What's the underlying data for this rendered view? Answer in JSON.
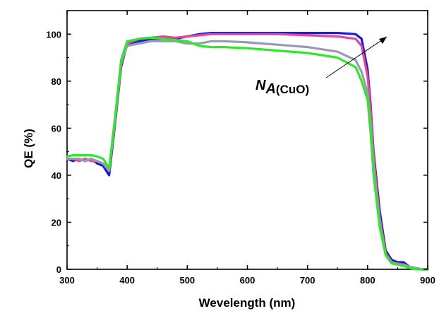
{
  "chart_data": {
    "type": "line",
    "xlabel": "Wevelength (nm)",
    "ylabel": "QE (%)",
    "xlim": [
      300,
      900
    ],
    "ylim": [
      0,
      110
    ],
    "xticks": [
      300,
      400,
      500,
      600,
      700,
      800,
      900
    ],
    "yticks": [
      0,
      20,
      40,
      60,
      80,
      100
    ],
    "xtick_labels": [
      "300",
      "400",
      "500",
      "600",
      "700",
      "800",
      "900"
    ],
    "ytick_labels": [
      "0",
      "20",
      "40",
      "60",
      "80",
      "100"
    ],
    "grid": false,
    "legend": "none",
    "annotation": {
      "var": "N",
      "sub_italic": "A",
      "sub_rest": "(CuO)",
      "arrow": "points up-right, in direction of increasing N_A"
    },
    "series": [
      {
        "color": "#1a1adb",
        "x": [
          300,
          310,
          320,
          330,
          340,
          350,
          360,
          370,
          380,
          390,
          400,
          420,
          440,
          460,
          480,
          500,
          520,
          540,
          560,
          600,
          650,
          700,
          750,
          780,
          790,
          800,
          805,
          810,
          820,
          830,
          840,
          850,
          860,
          870,
          880,
          890,
          900
        ],
        "y": [
          47,
          46,
          47,
          46,
          47,
          45,
          44,
          40,
          62,
          86,
          96,
          97,
          98,
          98,
          98,
          99,
          100,
          100.5,
          100.5,
          100.5,
          100.5,
          100.5,
          100.5,
          100,
          98,
          85,
          70,
          50,
          25,
          8,
          4,
          3,
          3,
          1,
          0.5,
          0,
          0
        ]
      },
      {
        "color": "#e5459c",
        "x": [
          300,
          310,
          320,
          330,
          340,
          350,
          360,
          370,
          380,
          390,
          400,
          420,
          440,
          460,
          480,
          500,
          520,
          540,
          560,
          600,
          650,
          700,
          750,
          780,
          790,
          800,
          805,
          810,
          820,
          830,
          840,
          850,
          860,
          870,
          880,
          890,
          900
        ],
        "y": [
          47,
          47,
          46,
          47,
          46,
          46,
          45,
          42,
          63,
          87,
          96,
          98,
          98.5,
          99,
          98.5,
          99,
          99.5,
          100,
          100,
          100,
          100,
          99.5,
          99,
          98,
          95,
          82,
          68,
          48,
          22,
          7,
          3,
          2.5,
          2,
          1,
          0.5,
          0,
          0
        ]
      },
      {
        "color": "#9a9aae",
        "x": [
          300,
          310,
          320,
          330,
          340,
          350,
          360,
          370,
          380,
          390,
          400,
          420,
          440,
          460,
          480,
          500,
          520,
          540,
          560,
          600,
          650,
          700,
          750,
          780,
          790,
          800,
          805,
          810,
          820,
          830,
          840,
          850,
          860,
          870,
          880,
          890,
          900
        ],
        "y": [
          47,
          47,
          47,
          46,
          47,
          46,
          45,
          42,
          64,
          88,
          95,
          96,
          97,
          97,
          97,
          96,
          96,
          97,
          97,
          96.5,
          95.5,
          94.5,
          92.5,
          89,
          84,
          75,
          62,
          44,
          20,
          6,
          3,
          2,
          2,
          1,
          0.5,
          0,
          0
        ]
      },
      {
        "color": "#2ee82e",
        "x": [
          300,
          310,
          320,
          330,
          340,
          350,
          360,
          370,
          380,
          390,
          400,
          420,
          440,
          460,
          480,
          500,
          520,
          540,
          560,
          600,
          650,
          700,
          750,
          780,
          790,
          800,
          805,
          810,
          820,
          830,
          840,
          850,
          860,
          870,
          880,
          890,
          900
        ],
        "y": [
          48,
          48.5,
          48.5,
          48.5,
          48.5,
          48,
          47,
          43,
          65,
          89,
          97,
          98,
          98.5,
          98,
          97.5,
          97,
          95,
          94.5,
          94.5,
          94,
          93,
          92,
          90,
          86,
          80,
          72,
          58,
          40,
          18,
          6,
          2.5,
          2,
          1.5,
          0.5,
          0,
          0,
          0
        ]
      }
    ]
  }
}
